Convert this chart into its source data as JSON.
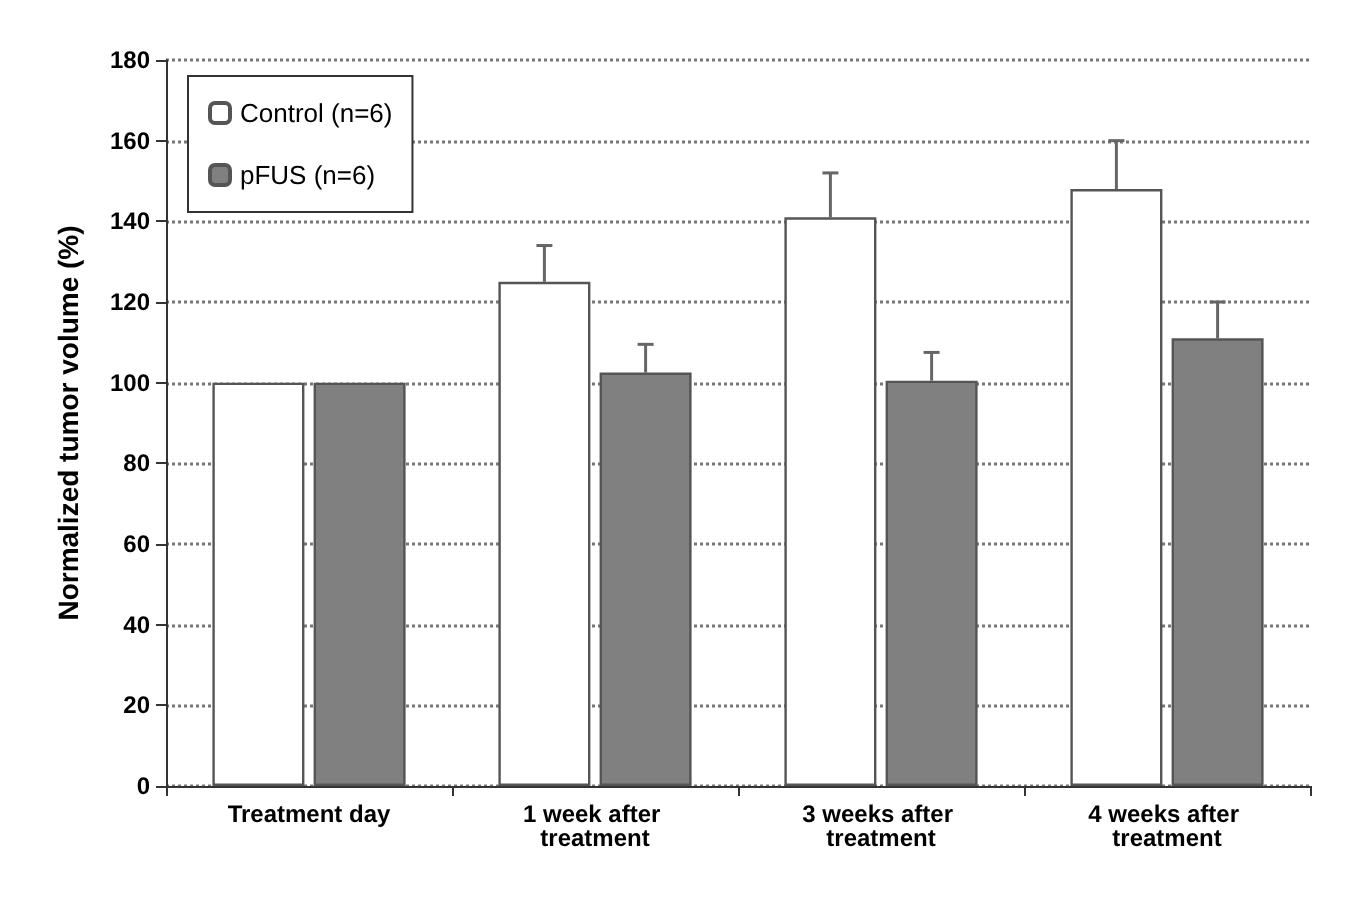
{
  "chart_data": {
    "type": "bar",
    "ylabel": "Normalized tumor volume (%)",
    "categories": [
      "Treatment day",
      "1 week after treatment",
      "3 weeks after treatment",
      "4 weeks after treatment"
    ],
    "series": [
      {
        "name": "Control (n=6)",
        "color": "#ffffff",
        "values": [
          100,
          125,
          141,
          148
        ],
        "errors": [
          null,
          9,
          11,
          12
        ]
      },
      {
        "name": "pFUS (n=6)",
        "color": "#808080",
        "values": [
          100,
          102.5,
          100.5,
          111
        ],
        "errors": [
          null,
          7,
          7,
          9
        ]
      }
    ],
    "ylim": [
      0,
      180
    ],
    "yticks": [
      0,
      20,
      40,
      60,
      80,
      100,
      120,
      140,
      160,
      180
    ],
    "grid": "y",
    "legend": "top left"
  }
}
